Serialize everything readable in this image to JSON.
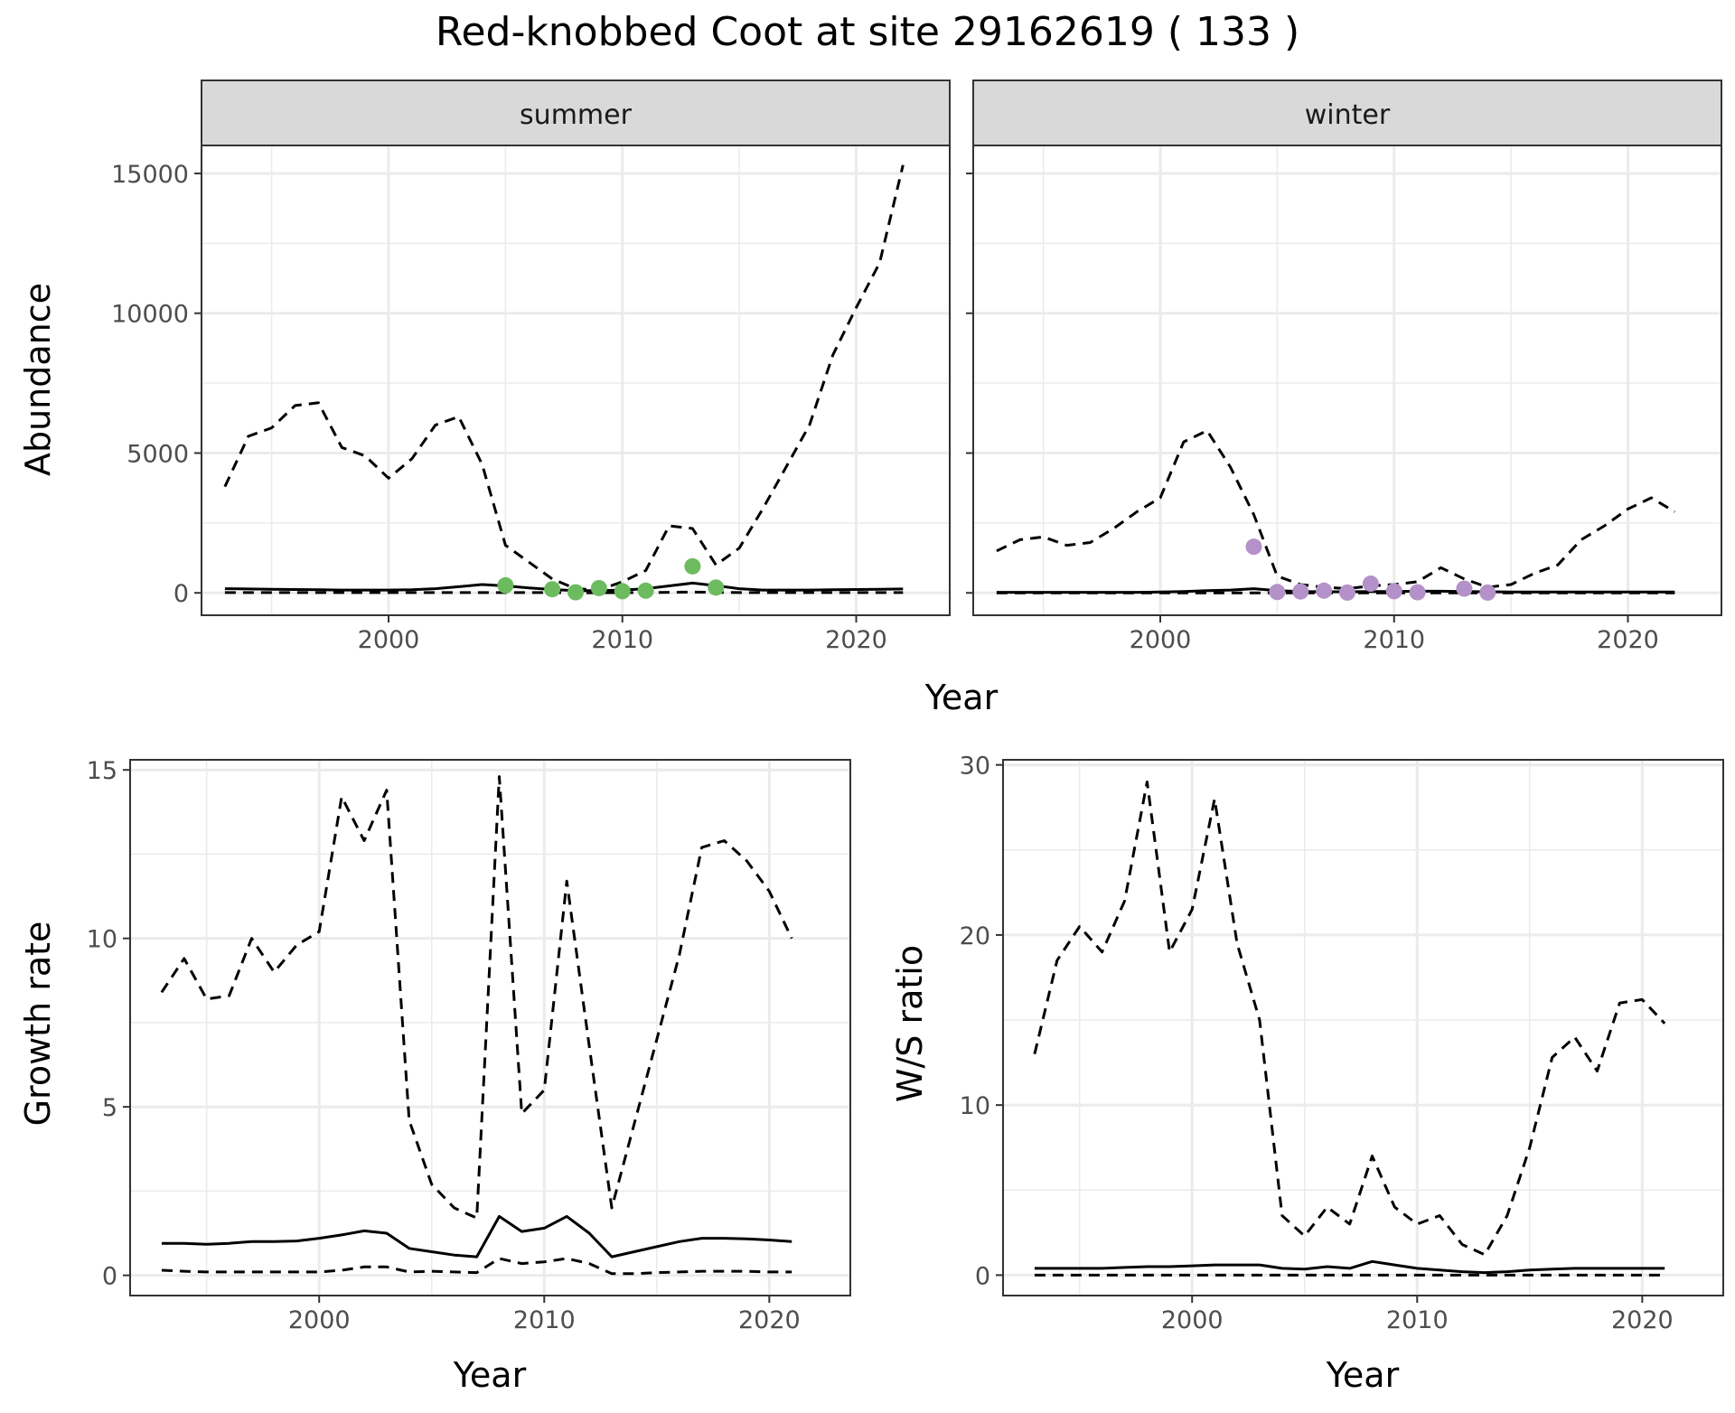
{
  "title": "Red-knobbed Coot at site 29162619 ( 133 )",
  "colors": {
    "summer_points": "#6dbb5f",
    "winter_points": "#b491c8",
    "lines": "#000000",
    "grid": "#ebebeb",
    "strip_bg": "#d9d9d9"
  },
  "chart_data": [
    {
      "type": "line",
      "facet": "summer",
      "xlabel": "Year",
      "ylabel": "Abundance",
      "xlim": [
        1992,
        2024
      ],
      "ylim": [
        -800,
        16000
      ],
      "xticks": [
        2000,
        2010,
        2020
      ],
      "yticks": [
        0,
        5000,
        10000,
        15000
      ],
      "grid": true,
      "x": [
        1993,
        1994,
        1995,
        1996,
        1997,
        1998,
        1999,
        2000,
        2001,
        2002,
        2003,
        2004,
        2005,
        2006,
        2007,
        2008,
        2009,
        2010,
        2011,
        2012,
        2013,
        2014,
        2015,
        2016,
        2017,
        2018,
        2019,
        2020,
        2021,
        2022
      ],
      "series": [
        {
          "style": "solid",
          "values": [
            150,
            140,
            130,
            120,
            110,
            100,
            100,
            100,
            110,
            150,
            220,
            300,
            250,
            180,
            120,
            80,
            80,
            100,
            150,
            250,
            350,
            260,
            150,
            100,
            100,
            100,
            110,
            120,
            130,
            140
          ]
        },
        {
          "style": "dashed",
          "values": [
            3800,
            5600,
            5900,
            6700,
            6800,
            5200,
            4900,
            4100,
            4800,
            6000,
            6300,
            4600,
            1700,
            1100,
            500,
            150,
            100,
            400,
            800,
            2400,
            2300,
            1000,
            1600,
            3000,
            4500,
            6000,
            8500,
            10200,
            11800,
            15300
          ]
        },
        {
          "style": "dashed",
          "values": [
            10,
            10,
            10,
            10,
            10,
            10,
            10,
            10,
            10,
            10,
            10,
            10,
            10,
            10,
            10,
            5,
            5,
            10,
            10,
            20,
            30,
            20,
            10,
            10,
            10,
            10,
            10,
            10,
            10,
            10
          ]
        }
      ],
      "points": {
        "x": [
          2005,
          2007,
          2008,
          2009,
          2010,
          2011,
          2013,
          2014
        ],
        "y": [
          270,
          130,
          20,
          170,
          60,
          80,
          950,
          190
        ]
      }
    },
    {
      "type": "line",
      "facet": "winter",
      "xlabel": "Year",
      "ylabel": "Abundance",
      "xlim": [
        1992,
        2024
      ],
      "ylim": [
        -800,
        16000
      ],
      "xticks": [
        2000,
        2010,
        2020
      ],
      "yticks": [
        0,
        5000,
        10000,
        15000
      ],
      "grid": true,
      "x": [
        1993,
        1994,
        1995,
        1996,
        1997,
        1998,
        1999,
        2000,
        2001,
        2002,
        2003,
        2004,
        2005,
        2006,
        2007,
        2008,
        2009,
        2010,
        2011,
        2012,
        2013,
        2014,
        2015,
        2016,
        2017,
        2018,
        2019,
        2020,
        2021,
        2022
      ],
      "series": [
        {
          "style": "solid",
          "values": [
            20,
            20,
            20,
            20,
            20,
            20,
            20,
            30,
            50,
            80,
            100,
            150,
            80,
            50,
            40,
            40,
            50,
            50,
            60,
            60,
            50,
            40,
            30,
            30,
            30,
            30,
            30,
            30,
            30,
            30
          ]
        },
        {
          "style": "dashed",
          "values": [
            1500,
            1900,
            2000,
            1700,
            1800,
            2300,
            2900,
            3400,
            5400,
            5800,
            4500,
            2800,
            600,
            300,
            200,
            150,
            250,
            300,
            400,
            900,
            500,
            200,
            300,
            700,
            1000,
            1900,
            2400,
            3000,
            3400,
            2900
          ]
        },
        {
          "style": "dashed",
          "values": [
            0,
            0,
            0,
            0,
            0,
            0,
            0,
            0,
            0,
            0,
            0,
            0,
            0,
            0,
            0,
            0,
            0,
            0,
            0,
            0,
            0,
            0,
            0,
            0,
            0,
            0,
            0,
            0,
            0,
            0
          ]
        }
      ],
      "points": {
        "x": [
          2004,
          2005,
          2006,
          2007,
          2008,
          2009,
          2010,
          2011,
          2013,
          2014
        ],
        "y": [
          1650,
          30,
          50,
          80,
          10,
          330,
          60,
          20,
          150,
          10
        ]
      }
    },
    {
      "type": "line",
      "xlabel": "Year",
      "ylabel": "Growth rate",
      "xlim": [
        1991.6,
        2023.6
      ],
      "ylim": [
        -0.6,
        15.3
      ],
      "xticks": [
        2000,
        2010,
        2020
      ],
      "yticks": [
        0,
        5,
        10,
        15
      ],
      "grid": true,
      "x": [
        1993,
        1994,
        1995,
        1996,
        1997,
        1998,
        1999,
        2000,
        2001,
        2002,
        2003,
        2004,
        2005,
        2006,
        2007,
        2008,
        2009,
        2010,
        2011,
        2012,
        2013,
        2014,
        2015,
        2016,
        2017,
        2018,
        2019,
        2020,
        2021
      ],
      "series": [
        {
          "style": "solid",
          "values": [
            0.95,
            0.95,
            0.92,
            0.95,
            1.0,
            1.0,
            1.02,
            1.1,
            1.2,
            1.32,
            1.25,
            0.8,
            0.7,
            0.6,
            0.55,
            1.75,
            1.3,
            1.4,
            1.75,
            1.25,
            0.55,
            0.7,
            0.85,
            1.0,
            1.1,
            1.1,
            1.08,
            1.05,
            1.0
          ]
        },
        {
          "style": "dashed",
          "values": [
            8.4,
            9.4,
            8.2,
            8.3,
            10.0,
            9.0,
            9.8,
            10.2,
            14.2,
            12.9,
            14.4,
            4.6,
            2.7,
            2.0,
            1.7,
            14.8,
            4.8,
            5.5,
            11.7,
            6.8,
            2.0,
            4.5,
            7.0,
            9.5,
            12.7,
            12.9,
            12.3,
            11.4,
            10.0
          ]
        },
        {
          "style": "dashed",
          "values": [
            0.15,
            0.12,
            0.1,
            0.1,
            0.1,
            0.1,
            0.1,
            0.1,
            0.15,
            0.25,
            0.25,
            0.1,
            0.12,
            0.1,
            0.08,
            0.5,
            0.35,
            0.4,
            0.5,
            0.35,
            0.05,
            0.05,
            0.08,
            0.1,
            0.12,
            0.12,
            0.12,
            0.1,
            0.1
          ]
        }
      ]
    },
    {
      "type": "line",
      "xlabel": "Year",
      "ylabel": "W/S ratio",
      "xlim": [
        1991.6,
        2023.6
      ],
      "ylim": [
        -1.2,
        30.3
      ],
      "xticks": [
        2000,
        2010,
        2020
      ],
      "yticks": [
        0,
        10,
        20,
        30
      ],
      "grid": true,
      "x": [
        1993,
        1994,
        1995,
        1996,
        1997,
        1998,
        1999,
        2000,
        2001,
        2002,
        2003,
        2004,
        2005,
        2006,
        2007,
        2008,
        2009,
        2010,
        2011,
        2012,
        2013,
        2014,
        2015,
        2016,
        2017,
        2018,
        2019,
        2020,
        2021
      ],
      "series": [
        {
          "style": "solid",
          "values": [
            0.4,
            0.4,
            0.4,
            0.4,
            0.45,
            0.5,
            0.5,
            0.55,
            0.6,
            0.6,
            0.6,
            0.4,
            0.35,
            0.5,
            0.4,
            0.8,
            0.6,
            0.4,
            0.3,
            0.2,
            0.15,
            0.2,
            0.3,
            0.35,
            0.4,
            0.4,
            0.4,
            0.4,
            0.4
          ]
        },
        {
          "style": "dashed",
          "values": [
            13.0,
            18.5,
            20.5,
            19.0,
            22.0,
            29.0,
            19.0,
            21.5,
            28.0,
            19.5,
            15.0,
            3.5,
            2.3,
            4.0,
            3.0,
            7.0,
            4.0,
            3.0,
            3.5,
            1.8,
            1.2,
            3.5,
            7.5,
            12.8,
            14.0,
            12.0,
            16.0,
            16.2,
            14.8
          ]
        },
        {
          "style": "dashed",
          "values": [
            0,
            0,
            0,
            0,
            0,
            0,
            0,
            0,
            0,
            0,
            0,
            0,
            0,
            0,
            0,
            0,
            0,
            0,
            0,
            0,
            0,
            0,
            0,
            0,
            0,
            0,
            0,
            0,
            0
          ]
        }
      ]
    }
  ],
  "strips": {
    "summer": "summer",
    "winter": "winter"
  }
}
